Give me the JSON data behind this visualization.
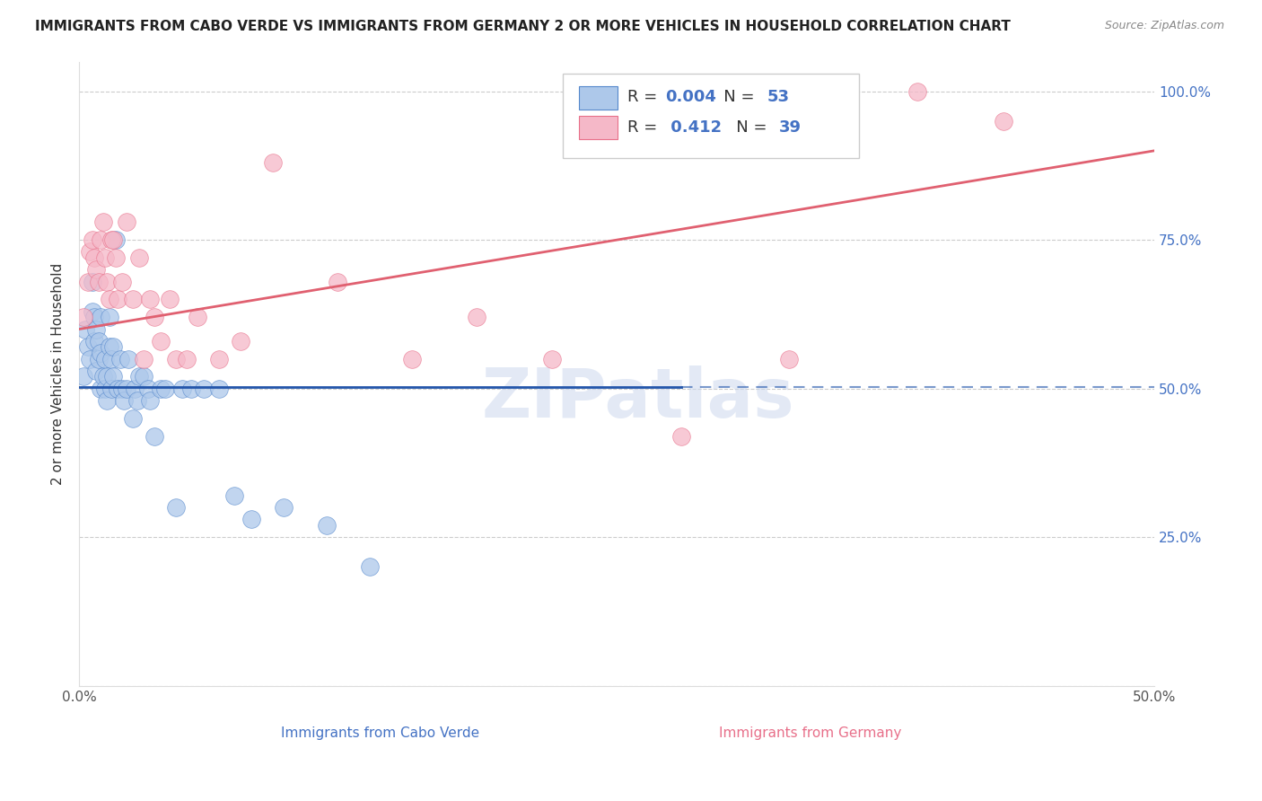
{
  "title": "IMMIGRANTS FROM CABO VERDE VS IMMIGRANTS FROM GERMANY 2 OR MORE VEHICLES IN HOUSEHOLD CORRELATION CHART",
  "source": "Source: ZipAtlas.com",
  "ylabel": "2 or more Vehicles in Household",
  "xlabel_cabo": "Immigrants from Cabo Verde",
  "xlabel_germany": "Immigrants from Germany",
  "xmin": 0.0,
  "xmax": 0.5,
  "ymin": 0.0,
  "ymax": 1.05,
  "yticks": [
    0.0,
    0.25,
    0.5,
    0.75,
    1.0
  ],
  "ytick_labels": [
    "",
    "25.0%",
    "50.0%",
    "75.0%",
    "100.0%"
  ],
  "xticks": [
    0.0,
    0.1,
    0.2,
    0.3,
    0.4,
    0.5
  ],
  "xtick_labels": [
    "0.0%",
    "",
    "",
    "",
    "",
    "50.0%"
  ],
  "cabo_R": "0.004",
  "cabo_N": "53",
  "germany_R": "0.412",
  "germany_N": "39",
  "cabo_color": "#adc8ea",
  "germany_color": "#f5b8c8",
  "cabo_edge_color": "#5588cc",
  "germany_edge_color": "#e8708a",
  "cabo_line_color": "#2255aa",
  "germany_line_color": "#e06070",
  "watermark": "ZIPatlas",
  "cabo_points_x": [
    0.002,
    0.003,
    0.004,
    0.005,
    0.006,
    0.006,
    0.007,
    0.007,
    0.008,
    0.008,
    0.009,
    0.009,
    0.01,
    0.01,
    0.01,
    0.011,
    0.012,
    0.012,
    0.013,
    0.013,
    0.014,
    0.014,
    0.015,
    0.015,
    0.016,
    0.016,
    0.017,
    0.018,
    0.019,
    0.02,
    0.021,
    0.022,
    0.023,
    0.025,
    0.026,
    0.027,
    0.028,
    0.03,
    0.032,
    0.033,
    0.035,
    0.038,
    0.04,
    0.045,
    0.048,
    0.052,
    0.058,
    0.065,
    0.072,
    0.08,
    0.095,
    0.115,
    0.135
  ],
  "cabo_points_y": [
    0.52,
    0.6,
    0.57,
    0.55,
    0.63,
    0.68,
    0.58,
    0.62,
    0.53,
    0.6,
    0.55,
    0.58,
    0.5,
    0.56,
    0.62,
    0.52,
    0.5,
    0.55,
    0.48,
    0.52,
    0.57,
    0.62,
    0.5,
    0.55,
    0.52,
    0.57,
    0.75,
    0.5,
    0.55,
    0.5,
    0.48,
    0.5,
    0.55,
    0.45,
    0.5,
    0.48,
    0.52,
    0.52,
    0.5,
    0.48,
    0.42,
    0.5,
    0.5,
    0.3,
    0.5,
    0.5,
    0.5,
    0.5,
    0.32,
    0.28,
    0.3,
    0.27,
    0.2
  ],
  "germany_points_x": [
    0.002,
    0.004,
    0.005,
    0.006,
    0.007,
    0.008,
    0.009,
    0.01,
    0.011,
    0.012,
    0.013,
    0.014,
    0.015,
    0.016,
    0.017,
    0.018,
    0.02,
    0.022,
    0.025,
    0.028,
    0.03,
    0.033,
    0.035,
    0.038,
    0.042,
    0.045,
    0.05,
    0.055,
    0.065,
    0.075,
    0.09,
    0.12,
    0.155,
    0.185,
    0.22,
    0.28,
    0.33,
    0.39,
    0.43
  ],
  "germany_points_y": [
    0.62,
    0.68,
    0.73,
    0.75,
    0.72,
    0.7,
    0.68,
    0.75,
    0.78,
    0.72,
    0.68,
    0.65,
    0.75,
    0.75,
    0.72,
    0.65,
    0.68,
    0.78,
    0.65,
    0.72,
    0.55,
    0.65,
    0.62,
    0.58,
    0.65,
    0.55,
    0.55,
    0.62,
    0.55,
    0.58,
    0.88,
    0.68,
    0.55,
    0.62,
    0.55,
    0.42,
    0.55,
    1.0,
    0.95
  ],
  "cabo_line_y0": 0.502,
  "cabo_line_y1": 0.502,
  "germany_line_y0": 0.6,
  "germany_line_y1": 0.9
}
